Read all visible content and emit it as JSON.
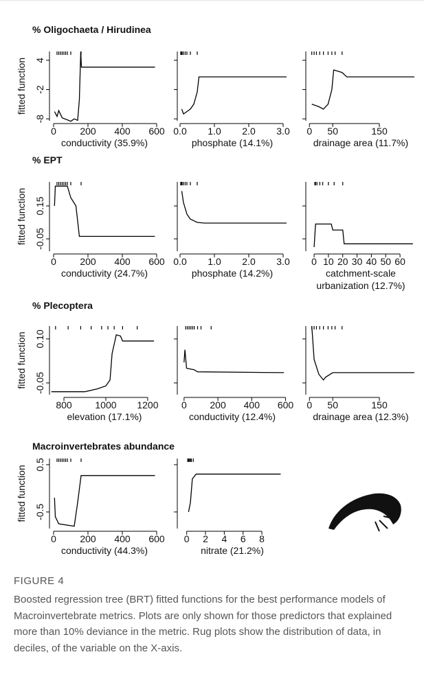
{
  "figure": {
    "label": "FIGURE 4",
    "caption": "Boosted regression tree (BRT) fitted functions for the best performance models of Macroinvertebrate metrics. Plots are only shown for those predictors that explained more than 10% deviance in the metric. Rug plots show the distribution of data, in deciles, of the variable on the X-axis."
  },
  "chart_data": [
    {
      "type": "line",
      "title": "% Oligochaeta / Hirudinea",
      "ylabel": "fitted function",
      "xlabel": "conductivity (35.9%)",
      "color": "#000000",
      "x": [
        5,
        20,
        30,
        50,
        80,
        100,
        120,
        140,
        150,
        158,
        162,
        590
      ],
      "values": [
        -6.5,
        -7.5,
        -6.3,
        -7.8,
        -8.2,
        -8.5,
        -8.0,
        -8.3,
        -4.0,
        5.8,
        2.6,
        2.6
      ],
      "xlim": [
        -24,
        616
      ],
      "xticks": [
        0,
        200,
        400,
        600
      ],
      "ylim": [
        -8.4,
        5.8
      ],
      "yticks": [
        4,
        -2,
        -8
      ],
      "rug": [
        20,
        30,
        40,
        50,
        60,
        70,
        80,
        100,
        160
      ]
    },
    {
      "type": "line",
      "xlabel": "phosphate (14.1%)",
      "color": "#000000",
      "x": [
        0.05,
        0.1,
        0.2,
        0.3,
        0.4,
        0.5,
        0.55,
        3.1
      ],
      "values": [
        -6.0,
        -7.0,
        -6.5,
        -6.0,
        -5.0,
        -2.5,
        0.6,
        0.6
      ],
      "xlim": [
        -0.08,
        3.12
      ],
      "xticks": [
        {
          "value": 0,
          "label": "0.0"
        },
        {
          "value": 1,
          "label": "1.0"
        },
        {
          "value": 2,
          "label": "2.0"
        },
        {
          "value": 3,
          "label": "3.0"
        }
      ],
      "rug": [
        0.02,
        0.04,
        0.06,
        0.1,
        0.15,
        0.2,
        0.3,
        0.5
      ]
    },
    {
      "type": "line",
      "xlabel": "drainage area (11.7%)",
      "color": "#000000",
      "x": [
        5,
        20,
        30,
        40,
        48,
        52,
        60,
        70,
        80,
        225
      ],
      "values": [
        -5.0,
        -5.5,
        -6.0,
        -5.0,
        -2.0,
        2.0,
        1.8,
        1.5,
        0.6,
        0.6
      ],
      "xlim": [
        -7.8,
        228
      ],
      "xticks": [
        0,
        50,
        150
      ],
      "rug": [
        5,
        10,
        15,
        22,
        30,
        40,
        48,
        55,
        70
      ]
    },
    {
      "type": "line",
      "title": "% EPT",
      "ylabel": "fitted function",
      "xlabel": "conductivity (24.7%)",
      "color": "#000000",
      "x": [
        5,
        10,
        80,
        100,
        130,
        150,
        590
      ],
      "values": [
        0.15,
        0.27,
        0.27,
        0.2,
        0.15,
        -0.035,
        -0.035
      ],
      "xlim": [
        -24,
        616
      ],
      "xticks": [
        0,
        200,
        400,
        600
      ],
      "ylim": [
        -0.125,
        0.296
      ],
      "yticks": [
        0.15,
        -0.05
      ],
      "rug": [
        20,
        30,
        40,
        50,
        60,
        70,
        80,
        100,
        160
      ]
    },
    {
      "type": "line",
      "xlabel": "phosphate (14.2%)",
      "color": "#000000",
      "x": [
        0.05,
        0.1,
        0.2,
        0.3,
        0.4,
        0.5,
        0.7,
        3.1
      ],
      "values": [
        0.24,
        0.17,
        0.1,
        0.07,
        0.06,
        0.05,
        0.046,
        0.046
      ],
      "xlim": [
        -0.08,
        3.12
      ],
      "xticks": [
        {
          "value": 0,
          "label": "0.0"
        },
        {
          "value": 1,
          "label": "1.0"
        },
        {
          "value": 2,
          "label": "2.0"
        },
        {
          "value": 3,
          "label": "3.0"
        }
      ],
      "rug": [
        0.02,
        0.04,
        0.06,
        0.1,
        0.15,
        0.2,
        0.3,
        0.5
      ]
    },
    {
      "type": "line",
      "xlabel": [
        "catchment-scale",
        "urbanization (12.7%)"
      ],
      "color": "#000000",
      "x": [
        0,
        1,
        12,
        13,
        20,
        21,
        69
      ],
      "values": [
        -0.1,
        0.04,
        0.04,
        0.004,
        0.004,
        -0.08,
        -0.08
      ],
      "xlim": [
        -5.8,
        71
      ],
      "xticks": [
        0,
        10,
        20,
        30,
        40,
        50,
        60
      ],
      "rug": [
        0.5,
        1,
        2,
        4,
        6,
        10,
        14,
        20
      ]
    },
    {
      "type": "line",
      "title": "% Plecoptera",
      "ylabel": "fitted function",
      "xlabel": "elevation (17.1%)",
      "color": "#000000",
      "x": [
        740,
        900,
        960,
        1000,
        1020,
        1030,
        1050,
        1070,
        1080,
        1230
      ],
      "values": [
        -0.08,
        -0.08,
        -0.07,
        -0.06,
        -0.04,
        0.05,
        0.114,
        0.11,
        0.093,
        0.093
      ],
      "xlim": [
        731,
        1256
      ],
      "xticks": [
        800,
        1000,
        1200
      ],
      "ylim": [
        -0.09,
        0.144
      ],
      "yticks": [
        {
          "value": 0.1,
          "label": "0.10"
        },
        -0.05
      ],
      "rug": [
        760,
        820,
        880,
        930,
        980,
        1010,
        1040,
        1080,
        1150
      ]
    },
    {
      "type": "line",
      "xlabel": "conductivity (12.4%)",
      "color": "#000000",
      "x": [
        0,
        5,
        15,
        60,
        80,
        590
      ],
      "values": [
        0.02,
        0.063,
        0.0,
        -0.005,
        -0.012,
        -0.015
      ],
      "xlim": [
        -40,
        610
      ],
      "xticks": [
        0,
        200,
        400,
        600
      ],
      "rug": [
        10,
        20,
        30,
        40,
        50,
        60,
        80,
        100,
        160
      ]
    },
    {
      "type": "line",
      "xlabel": "drainage area (12.3%)",
      "color": "#000000",
      "x": [
        5,
        10,
        20,
        30,
        35,
        50,
        225
      ],
      "values": [
        0.144,
        0.03,
        -0.02,
        -0.04,
        -0.03,
        -0.015,
        -0.015
      ],
      "xlim": [
        -7.8,
        228
      ],
      "xticks": [
        0,
        50,
        150
      ],
      "rug": [
        5,
        10,
        15,
        22,
        30,
        40,
        48,
        55,
        70
      ]
    },
    {
      "type": "line",
      "title": "Macroinvertebrates abundance",
      "ylabel": "fitted function",
      "xlabel": "conductivity (44.3%)",
      "color": "#000000",
      "x": [
        5,
        10,
        30,
        120,
        140,
        160,
        590
      ],
      "values": [
        -0.2,
        -0.6,
        -0.75,
        -0.8,
        -0.3,
        0.27,
        0.27
      ],
      "xlim": [
        -24,
        616
      ],
      "xticks": [
        0,
        200,
        400,
        600
      ],
      "ylim": [
        -0.85,
        0.63
      ],
      "yticks": [
        0.5,
        -0.5
      ],
      "rug": [
        20,
        30,
        40,
        50,
        60,
        70,
        80,
        100,
        160
      ]
    },
    {
      "type": "line",
      "xlabel": "nitrate (21.2%)",
      "color": "#000000",
      "x": [
        0.2,
        0.4,
        0.6,
        1,
        10
      ],
      "values": [
        -0.5,
        -0.3,
        0.2,
        0.3,
        0.3
      ],
      "xlim": [
        -1,
        10.7
      ],
      "xticks": [
        0,
        2,
        4,
        6,
        8
      ],
      "rug": [
        0.1,
        0.2,
        0.3,
        0.4,
        0.5,
        0.7
      ]
    }
  ]
}
